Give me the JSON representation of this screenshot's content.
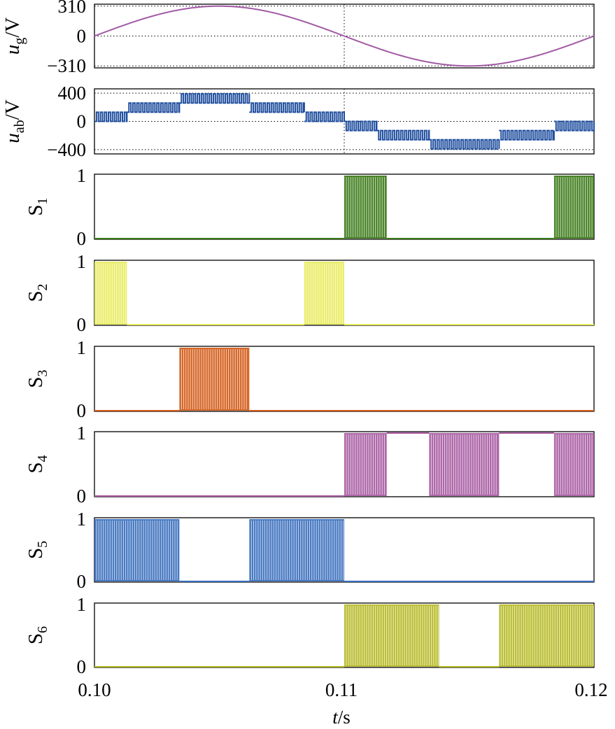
{
  "chart_data": {
    "type": "line",
    "title": "",
    "x_axis": {
      "label_var": "t",
      "label_unit": "/s",
      "range": [
        0.1,
        0.12
      ],
      "ticks": [
        {
          "value": 0.1,
          "label": "0.10"
        },
        {
          "value": 0.11,
          "label": "0.11"
        },
        {
          "value": 0.12,
          "label": "0.12"
        }
      ],
      "marker_line": 0.11
    },
    "panels": [
      {
        "id": "ug",
        "label_var": "u",
        "label_sub": "g",
        "label_unit": "/V",
        "kind": "sine",
        "color": "#a25aa6",
        "amplitude": 310,
        "frequency_hz": 50,
        "ylim": [
          -330,
          330
        ],
        "ticks": [
          {
            "value": 310,
            "label": "310"
          },
          {
            "value": 0,
            "label": "0"
          },
          {
            "value": -310,
            "label": "−310"
          }
        ],
        "gridlines": [
          310,
          0,
          -310
        ]
      },
      {
        "id": "uab",
        "label_var": "u",
        "label_sub": "ab",
        "label_unit": "/V",
        "kind": "multilevel",
        "color": "#1f4e9e",
        "ylim": [
          -460,
          460
        ],
        "ticks": [
          {
            "value": 400,
            "label": "400"
          },
          {
            "value": 0,
            "label": "0"
          },
          {
            "value": -400,
            "label": "−400"
          }
        ],
        "gridlines": [
          400,
          0,
          -400
        ],
        "segments": [
          {
            "t0": 0.1,
            "t1": 0.1013,
            "base": 0,
            "top": 130
          },
          {
            "t0": 0.1013,
            "t1": 0.1034,
            "base": 130,
            "top": 260
          },
          {
            "t0": 0.1034,
            "t1": 0.1062,
            "base": 260,
            "top": 390
          },
          {
            "t0": 0.1062,
            "t1": 0.1084,
            "base": 130,
            "top": 260
          },
          {
            "t0": 0.1084,
            "t1": 0.11,
            "base": 0,
            "top": 130
          },
          {
            "t0": 0.11,
            "t1": 0.1113,
            "base": 0,
            "top": -130
          },
          {
            "t0": 0.1113,
            "t1": 0.1134,
            "base": -130,
            "top": -260
          },
          {
            "t0": 0.1134,
            "t1": 0.1162,
            "base": -260,
            "top": -390
          },
          {
            "t0": 0.1162,
            "t1": 0.1184,
            "base": -130,
            "top": -260
          },
          {
            "t0": 0.1184,
            "t1": 0.12,
            "base": 0,
            "top": -130
          }
        ]
      },
      {
        "id": "S1",
        "label_var": "S",
        "label_sub": "1",
        "kind": "switch",
        "color": "#3a7a16",
        "ylim": [
          0,
          1
        ],
        "ticks": [
          {
            "value": 1,
            "label": "1"
          },
          {
            "value": 0,
            "label": "0"
          }
        ],
        "pwm_intervals": [
          [
            0.11,
            0.1117
          ],
          [
            0.1184,
            0.12
          ]
        ],
        "high_intervals": []
      },
      {
        "id": "S2",
        "label_var": "S",
        "label_sub": "2",
        "kind": "switch",
        "color": "#e8ec5c",
        "ylim": [
          0,
          1
        ],
        "ticks": [
          {
            "value": 1,
            "label": "1"
          },
          {
            "value": 0,
            "label": "0"
          }
        ],
        "pwm_intervals": [
          [
            0.1,
            0.1013
          ],
          [
            0.1084,
            0.11
          ]
        ],
        "high_intervals": []
      },
      {
        "id": "S3",
        "label_var": "S",
        "label_sub": "3",
        "kind": "switch",
        "color": "#d35a17",
        "ylim": [
          0,
          1
        ],
        "ticks": [
          {
            "value": 1,
            "label": "1"
          },
          {
            "value": 0,
            "label": "0"
          }
        ],
        "pwm_intervals": [
          [
            0.1034,
            0.1062
          ]
        ],
        "high_intervals": []
      },
      {
        "id": "S4",
        "label_var": "S",
        "label_sub": "4",
        "kind": "switch",
        "color": "#a75aa2",
        "ylim": [
          0,
          1
        ],
        "ticks": [
          {
            "value": 1,
            "label": "1"
          },
          {
            "value": 0,
            "label": "0"
          }
        ],
        "pwm_intervals": [
          [
            0.11,
            0.1117
          ],
          [
            0.1134,
            0.1162
          ],
          [
            0.1184,
            0.12
          ]
        ],
        "high_intervals": [
          [
            0.1117,
            0.1134
          ],
          [
            0.1162,
            0.1184
          ]
        ]
      },
      {
        "id": "S5",
        "label_var": "S",
        "label_sub": "5",
        "kind": "switch",
        "color": "#3a6fbd",
        "ylim": [
          0,
          1
        ],
        "ticks": [
          {
            "value": 1,
            "label": "1"
          },
          {
            "value": 0,
            "label": "0"
          }
        ],
        "pwm_intervals": [
          [
            0.1,
            0.1034
          ],
          [
            0.1062,
            0.11
          ]
        ],
        "high_intervals": []
      },
      {
        "id": "S6",
        "label_var": "S",
        "label_sub": "6",
        "kind": "switch",
        "color": "#b5ba24",
        "ylim": [
          0,
          1
        ],
        "ticks": [
          {
            "value": 1,
            "label": "1"
          },
          {
            "value": 0,
            "label": "0"
          }
        ],
        "pwm_intervals": [
          [
            0.11,
            0.1138
          ],
          [
            0.1162,
            0.12
          ]
        ],
        "high_intervals": []
      }
    ]
  }
}
